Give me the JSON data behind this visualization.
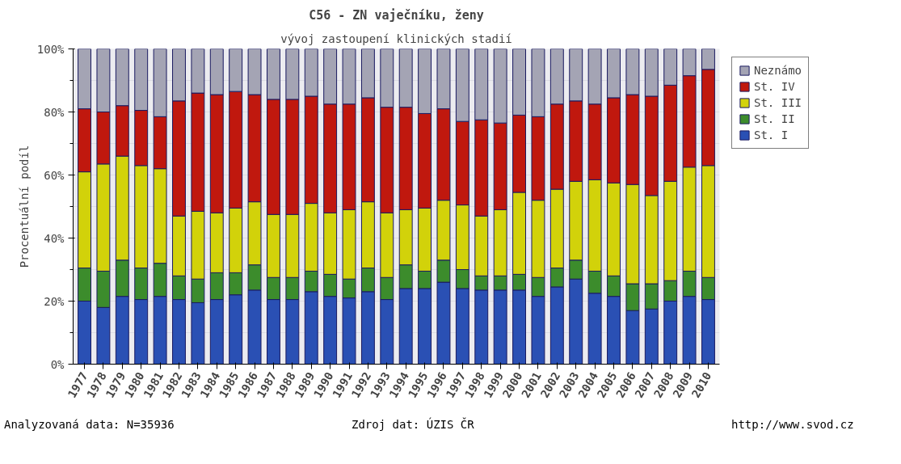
{
  "chart_data": {
    "type": "bar",
    "stacked": true,
    "title": "C56 - ZN vaječníku, ženy",
    "subtitle": "vývoj zastoupení klinických stadií",
    "ylabel": "Procentuální podíl",
    "categories": [
      "1977",
      "1978",
      "1979",
      "1980",
      "1981",
      "1982",
      "1983",
      "1984",
      "1985",
      "1986",
      "1987",
      "1988",
      "1989",
      "1990",
      "1991",
      "1992",
      "1993",
      "1994",
      "1995",
      "1996",
      "1997",
      "1998",
      "1999",
      "2000",
      "2001",
      "2002",
      "2003",
      "2004",
      "2005",
      "2006",
      "2007",
      "2008",
      "2009",
      "2010"
    ],
    "series": [
      {
        "name": "St. I",
        "color": "#2a50b4",
        "values": [
          20,
          18,
          21.5,
          20.5,
          21.5,
          20.5,
          19.5,
          20.5,
          22,
          23.5,
          20.5,
          20.5,
          23,
          21.5,
          21,
          23,
          20.5,
          24,
          24,
          26,
          24,
          23.5,
          23.5,
          23.5,
          21.5,
          24.5,
          27,
          22.5,
          21.5,
          17,
          17.5,
          20,
          21.5,
          20.5
        ]
      },
      {
        "name": "St. II",
        "color": "#3c8c2c",
        "values": [
          10.5,
          11.5,
          11.5,
          10,
          10.5,
          7.5,
          7.5,
          8.5,
          7,
          8,
          7,
          7,
          6.5,
          7,
          6,
          7.5,
          7,
          7.5,
          5.5,
          7,
          6,
          4.5,
          4.5,
          5,
          6,
          6,
          6,
          7,
          6.5,
          8.5,
          8,
          6.5,
          8,
          7
        ]
      },
      {
        "name": "St. III",
        "color": "#d2d20a",
        "values": [
          30.5,
          34,
          33,
          32.5,
          30,
          19,
          21.5,
          19,
          20.5,
          20,
          20,
          20,
          21.5,
          19.5,
          22,
          21,
          20.5,
          17.5,
          20,
          19,
          20.5,
          19,
          21,
          26,
          24.5,
          25,
          25,
          29,
          29.5,
          31.5,
          28,
          31.5,
          33,
          35.5
        ]
      },
      {
        "name": "St. IV",
        "color": "#c0180e",
        "values": [
          20,
          16.5,
          16,
          17.5,
          16.5,
          36.5,
          37.5,
          37.5,
          37,
          34,
          36.5,
          36.5,
          34,
          34.5,
          33.5,
          33,
          33.5,
          32.5,
          30,
          29,
          26.5,
          30.5,
          27.5,
          24.5,
          26.5,
          27,
          25.5,
          24,
          27,
          28.5,
          31.5,
          30.5,
          29,
          30.5
        ]
      },
      {
        "name": "Neznámo",
        "color": "#a4a4b4",
        "values": [
          19,
          20,
          18,
          19.5,
          21.5,
          16.5,
          14,
          14.5,
          13.5,
          14.5,
          16,
          16,
          15,
          17.5,
          17.5,
          15.5,
          18.5,
          18.5,
          20.5,
          19,
          23,
          22.5,
          23.5,
          21,
          21.5,
          17.5,
          16.5,
          17.5,
          15.5,
          14.5,
          15,
          11.5,
          8.5,
          6.5
        ]
      }
    ],
    "ylim": [
      0,
      100
    ],
    "yticks": [
      {
        "value": 0,
        "label": "0%"
      },
      {
        "value": 10,
        "label": null
      },
      {
        "value": 20,
        "label": "20%"
      },
      {
        "value": 30,
        "label": null
      },
      {
        "value": 40,
        "label": "40%"
      },
      {
        "value": 50,
        "label": null
      },
      {
        "value": 60,
        "label": "60%"
      },
      {
        "value": 70,
        "label": null
      },
      {
        "value": 80,
        "label": "80%"
      },
      {
        "value": 90,
        "label": null
      },
      {
        "value": 100,
        "label": "100%"
      }
    ],
    "grid": "y",
    "legend": "top right",
    "annotations": [
      "Analyzovaná data: N=35936",
      "Zdroj dat: ÚZIS ČR",
      "http://www.svod.cz"
    ]
  }
}
